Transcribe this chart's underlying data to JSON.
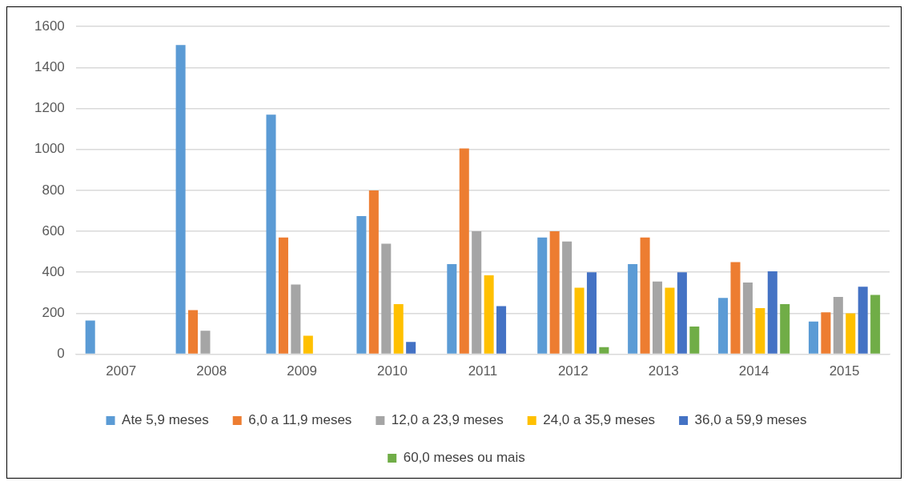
{
  "chart_data": {
    "type": "bar",
    "categories": [
      "2007",
      "2008",
      "2009",
      "2010",
      "2011",
      "2012",
      "2013",
      "2014",
      "2015"
    ],
    "series": [
      {
        "name": "Ate 5,9 meses",
        "color": "#5b9bd5",
        "values": [
          165,
          1510,
          1170,
          675,
          440,
          570,
          440,
          275,
          160
        ]
      },
      {
        "name": "6,0 a 11,9 meses",
        "color": "#ed7d31",
        "values": [
          null,
          215,
          570,
          800,
          1005,
          600,
          570,
          450,
          205
        ]
      },
      {
        "name": "12,0 a 23,9 meses",
        "color": "#a5a5a5",
        "values": [
          null,
          115,
          340,
          540,
          600,
          550,
          355,
          350,
          280
        ]
      },
      {
        "name": "24,0 a 35,9 meses",
        "color": "#ffc000",
        "values": [
          null,
          null,
          90,
          245,
          385,
          325,
          325,
          225,
          200
        ]
      },
      {
        "name": "36,0 a 59,9 meses",
        "color": "#4472c4",
        "values": [
          null,
          null,
          null,
          60,
          235,
          400,
          400,
          405,
          330
        ]
      },
      {
        "name": "60,0 meses ou mais",
        "color": "#70ad47",
        "values": [
          null,
          null,
          null,
          null,
          null,
          35,
          135,
          245,
          290
        ]
      }
    ],
    "ylim": [
      0,
      1600
    ],
    "yticks": [
      0,
      200,
      400,
      600,
      800,
      1000,
      1200,
      1400,
      1600
    ],
    "grid": "y",
    "legend": "bottom"
  }
}
